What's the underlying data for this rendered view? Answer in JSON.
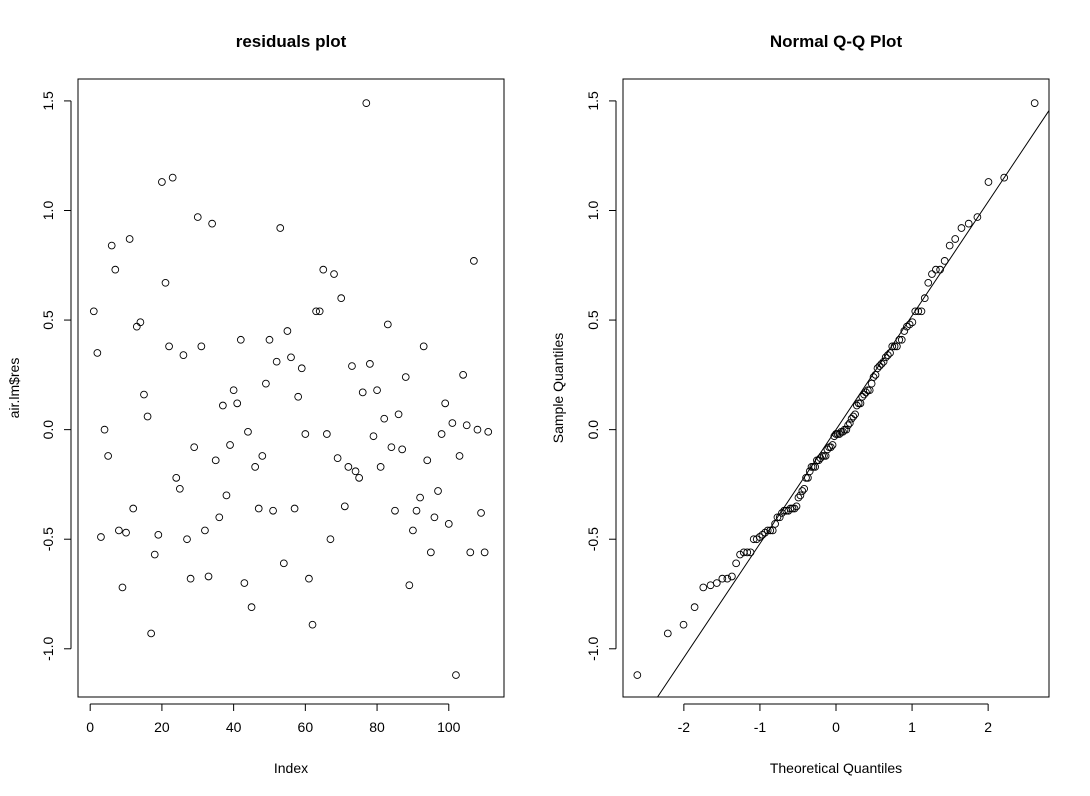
{
  "chart_data": [
    {
      "type": "scatter",
      "title": "residuals plot",
      "xlabel": "Index",
      "ylabel": "air.lm$res",
      "xlim": [
        -3.4,
        115.4
      ],
      "ylim": [
        -1.22,
        1.6
      ],
      "xticks": [
        0,
        20,
        40,
        60,
        80,
        100
      ],
      "yticks": [
        -1.0,
        -0.5,
        0.0,
        0.5,
        1.0,
        1.5
      ],
      "ytick_labels": [
        "-1.0",
        "-0.5",
        "0.0",
        "0.5",
        "1.0",
        "1.5"
      ],
      "grid": false,
      "marker": "open-circle",
      "x": [
        1,
        2,
        3,
        4,
        5,
        6,
        7,
        8,
        9,
        10,
        11,
        12,
        13,
        14,
        15,
        16,
        17,
        18,
        19,
        20,
        21,
        22,
        23,
        24,
        25,
        26,
        27,
        28,
        29,
        30,
        31,
        32,
        33,
        34,
        35,
        36,
        37,
        38,
        39,
        40,
        41,
        42,
        43,
        44,
        45,
        46,
        47,
        48,
        49,
        50,
        51,
        52,
        53,
        54,
        55,
        56,
        57,
        58,
        59,
        60,
        61,
        62,
        63,
        64,
        65,
        66,
        67,
        68,
        69,
        70,
        71,
        72,
        73,
        74,
        75,
        76,
        77,
        78,
        79,
        80,
        81,
        82,
        83,
        84,
        85,
        86,
        87,
        88,
        89,
        90,
        91,
        92,
        93,
        94,
        95,
        96,
        97,
        98,
        99,
        100,
        101,
        102,
        103,
        104,
        105,
        106,
        107,
        108,
        109,
        110,
        111
      ],
      "y": [
        0.54,
        0.35,
        -0.49,
        0.0,
        -0.12,
        0.84,
        0.73,
        -0.46,
        -0.72,
        -0.47,
        0.87,
        -0.36,
        0.47,
        0.49,
        0.16,
        0.06,
        -0.93,
        -0.57,
        -0.48,
        1.13,
        0.67,
        0.38,
        1.15,
        -0.22,
        -0.27,
        0.34,
        -0.5,
        -0.68,
        -0.08,
        0.97,
        0.38,
        -0.46,
        -0.67,
        0.94,
        -0.14,
        -0.4,
        0.11,
        -0.3,
        -0.07,
        0.18,
        0.12,
        0.41,
        -0.7,
        -0.01,
        -0.81,
        -0.17,
        -0.36,
        -0.12,
        0.21,
        0.41,
        -0.37,
        0.31,
        0.92,
        -0.61,
        0.45,
        0.33,
        -0.36,
        0.15,
        0.28,
        -0.02,
        -0.68,
        -0.89,
        0.54,
        0.54,
        0.73,
        -0.02,
        -0.5,
        0.71,
        -0.13,
        0.6,
        -0.35,
        -0.17,
        0.29,
        -0.19,
        -0.22,
        0.17,
        1.49,
        0.3,
        -0.03,
        0.18,
        -0.17,
        0.05,
        0.48,
        -0.08,
        -0.37,
        0.07,
        -0.09,
        0.24,
        -0.71,
        -0.46,
        -0.37,
        -0.31,
        0.38,
        -0.14,
        -0.56,
        -0.4,
        -0.28,
        -0.02,
        0.12,
        -0.43,
        0.03,
        -1.12,
        -0.12,
        0.25,
        0.02,
        -0.56,
        0.77,
        0.0,
        -0.38,
        -0.56,
        -0.01
      ]
    },
    {
      "type": "scatter",
      "title": "Normal Q-Q Plot",
      "xlabel": "Theoretical Quantiles",
      "ylabel": "Sample Quantiles",
      "xlim": [
        -2.8,
        2.8
      ],
      "ylim": [
        -1.22,
        1.6
      ],
      "xticks": [
        -2,
        -1,
        0,
        1,
        2
      ],
      "yticks": [
        -1.0,
        -0.5,
        0.0,
        0.5,
        1.0,
        1.5
      ],
      "ytick_labels": [
        "-1.0",
        "-0.5",
        "0.0",
        "0.5",
        "1.0",
        "1.5"
      ],
      "grid": false,
      "marker": "open-circle",
      "reference_line": {
        "intercept": 0.0,
        "slope": 0.52
      },
      "sample_values": [
        0.54,
        0.35,
        -0.49,
        0.0,
        -0.12,
        0.84,
        0.73,
        -0.46,
        -0.72,
        -0.47,
        0.87,
        -0.36,
        0.47,
        0.49,
        0.16,
        0.06,
        -0.93,
        -0.57,
        -0.48,
        1.13,
        0.67,
        0.38,
        1.15,
        -0.22,
        -0.27,
        0.34,
        -0.5,
        -0.68,
        -0.08,
        0.97,
        0.38,
        -0.46,
        -0.67,
        0.94,
        -0.14,
        -0.4,
        0.11,
        -0.3,
        -0.07,
        0.18,
        0.12,
        0.41,
        -0.7,
        -0.01,
        -0.81,
        -0.17,
        -0.36,
        -0.12,
        0.21,
        0.41,
        -0.37,
        0.31,
        0.92,
        -0.61,
        0.45,
        0.33,
        -0.36,
        0.15,
        0.28,
        -0.02,
        -0.68,
        -0.89,
        0.54,
        0.54,
        0.73,
        -0.02,
        -0.5,
        0.71,
        -0.13,
        0.6,
        -0.35,
        -0.17,
        0.29,
        -0.19,
        -0.22,
        0.17,
        1.49,
        0.3,
        -0.03,
        0.18,
        -0.17,
        0.05,
        0.48,
        -0.08,
        -0.37,
        0.07,
        -0.09,
        0.24,
        -0.71,
        -0.46,
        -0.37,
        -0.31,
        0.38,
        -0.14,
        -0.56,
        -0.4,
        -0.28,
        -0.02,
        0.12,
        -0.43,
        0.03,
        -1.12,
        -0.12,
        0.25,
        0.02,
        -0.56,
        0.77,
        0.0,
        -0.38,
        -0.56,
        -0.01
      ]
    }
  ]
}
